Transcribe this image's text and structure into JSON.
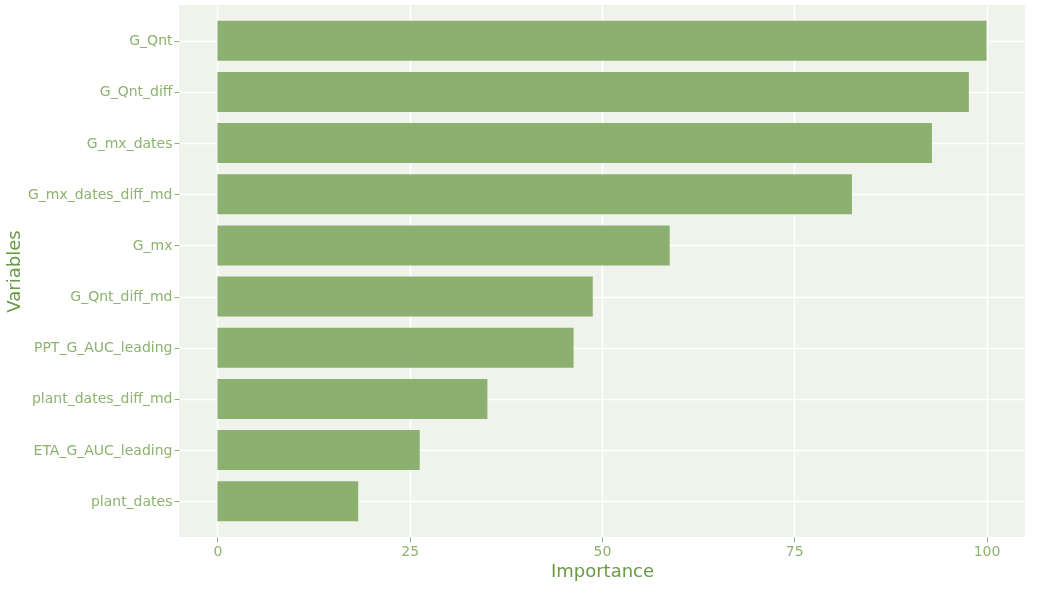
{
  "chart_data": {
    "type": "bar",
    "orientation": "horizontal",
    "xlabel": "Importance",
    "ylabel": "Variables",
    "categories": [
      "G_Qnt",
      "G_Qnt_diff",
      "G_mx_dates",
      "G_mx_dates_diff_md",
      "G_mx",
      "G_Qnt_diff_md",
      "PPT_G_AUC_leading",
      "plant_dates_diff_md",
      "ETA_G_AUC_leading",
      "plant_dates"
    ],
    "values": [
      100,
      97.7,
      92.9,
      82.5,
      58.8,
      48.8,
      46.3,
      35.1,
      26.3,
      18.3
    ],
    "color": "#8bb06f",
    "xlim": [
      -5,
      105
    ],
    "xticks": [
      0,
      25,
      50,
      75,
      100
    ],
    "grid": true
  }
}
